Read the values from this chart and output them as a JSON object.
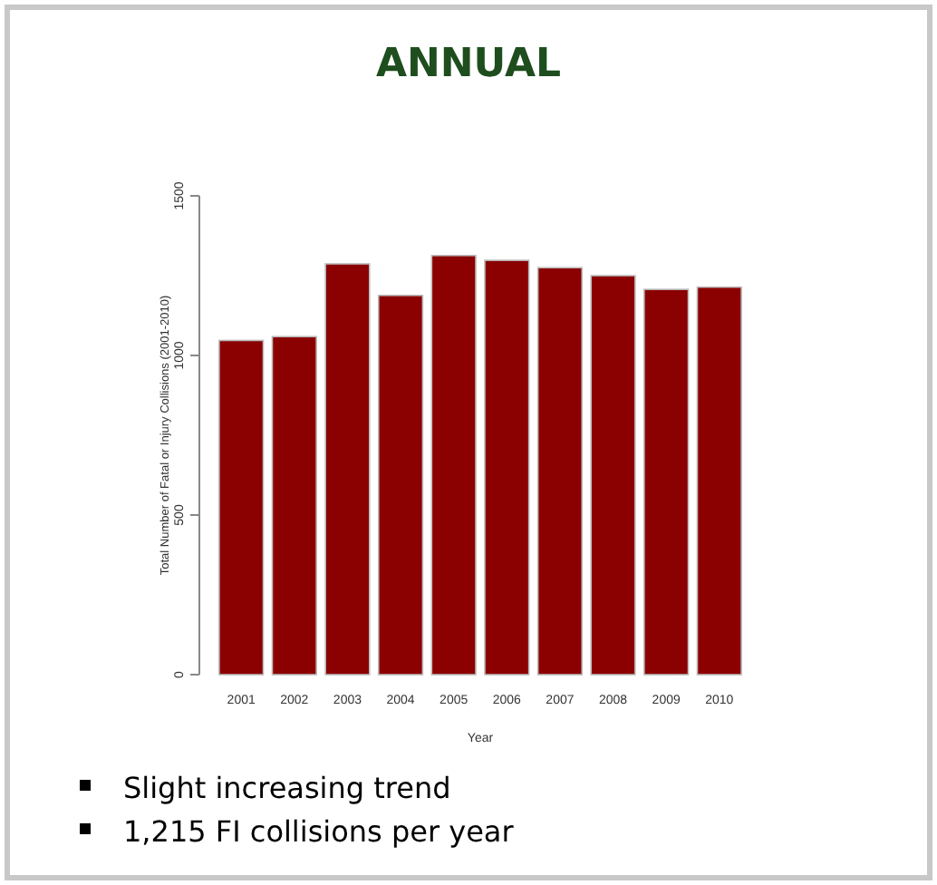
{
  "chart_data": {
    "type": "bar",
    "title": "ANNUAL",
    "xlabel": "Year",
    "ylabel": "Total Number of Fatal or Injury Collisions (2001-2010)",
    "categories": [
      "2001",
      "2002",
      "2003",
      "2004",
      "2005",
      "2006",
      "2007",
      "2008",
      "2009",
      "2010"
    ],
    "values": [
      1047,
      1059,
      1287,
      1188,
      1313,
      1298,
      1275,
      1250,
      1207,
      1214
    ],
    "color": "#8b0000",
    "ylim": [
      0,
      1500
    ],
    "yticks": [
      0,
      500,
      1000,
      1500
    ],
    "grid": false,
    "annotations": [
      "Slight increasing trend",
      "1,215 FI collisions per year"
    ]
  }
}
